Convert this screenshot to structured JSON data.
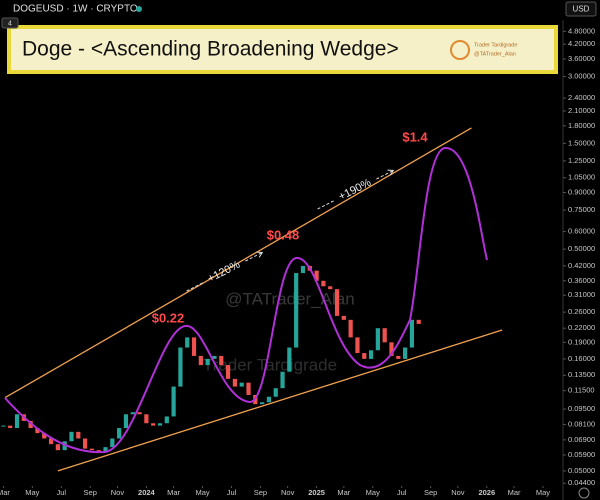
{
  "header": {
    "symbol": "DOGEUSD · 1W · CRYPTO",
    "interval_badge": "4",
    "currency": "USD"
  },
  "banner": {
    "title": "Doge - <Ascending Broadening Wedge>",
    "brand": "Trader Tardigrade",
    "handle": "@TATrader_Alan"
  },
  "watermarks": [
    "@TATrader_Alan",
    "Trader Tardigrade"
  ],
  "annotations": [
    "$0.22",
    "$0.48",
    "$1.4",
    "+120%",
    "+190%"
  ],
  "chart_data": {
    "type": "candlestick",
    "log_scale": true,
    "xlim": [
      2023.14,
      2026.43
    ],
    "ylim": [
      0.041,
      5.4
    ],
    "up_color": "#26a69a",
    "down_color": "#ef5350",
    "x": [
      2023.16,
      2023.2,
      2023.24,
      2023.28,
      2023.32,
      2023.36,
      2023.4,
      2023.44,
      2023.48,
      2023.52,
      2023.56,
      2023.6,
      2023.64,
      2023.68,
      2023.72,
      2023.76,
      2023.8,
      2023.84,
      2023.88,
      2023.92,
      2023.96,
      2024.0,
      2024.04,
      2024.08,
      2024.12,
      2024.16,
      2024.2,
      2024.24,
      2024.28,
      2024.32,
      2024.36,
      2024.4,
      2024.44,
      2024.48,
      2024.52,
      2024.56,
      2024.6,
      2024.64,
      2024.68,
      2024.72,
      2024.76,
      2024.8,
      2024.84,
      2024.88,
      2024.92,
      2024.96,
      2025.0,
      2025.04,
      2025.08,
      2025.12,
      2025.16,
      2025.2,
      2025.24,
      2025.28,
      2025.32,
      2025.36,
      2025.4,
      2025.44,
      2025.48,
      2025.52,
      2025.56,
      2025.6
    ],
    "values": [
      0.08,
      0.078,
      0.09,
      0.084,
      0.078,
      0.074,
      0.07,
      0.066,
      0.062,
      0.068,
      0.075,
      0.07,
      0.063,
      0.062,
      0.061,
      0.064,
      0.07,
      0.078,
      0.09,
      0.092,
      0.09,
      0.082,
      0.08,
      0.082,
      0.088,
      0.12,
      0.18,
      0.2,
      0.165,
      0.15,
      0.16,
      0.165,
      0.15,
      0.13,
      0.12,
      0.125,
      0.11,
      0.1,
      0.102,
      0.108,
      0.118,
      0.14,
      0.18,
      0.39,
      0.42,
      0.4,
      0.36,
      0.34,
      0.33,
      0.25,
      0.24,
      0.2,
      0.17,
      0.16,
      0.175,
      0.22,
      0.19,
      0.165,
      0.16,
      0.18,
      0.24,
      0.23
    ],
    "trendlines": [
      {
        "color": "#f0a050",
        "x": [
          2023.17,
          2025.91
        ],
        "values": [
          0.107,
          1.76
        ]
      },
      {
        "color": "#f0a050",
        "x": [
          2023.48,
          2026.09
        ],
        "values": [
          0.05,
          0.216
        ]
      }
    ],
    "yticks": [
      {
        "value": 4.8,
        "label": "4.80000"
      },
      {
        "value": 4.2,
        "label": "4.20000"
      },
      {
        "value": 3.6,
        "label": "3.60000"
      },
      {
        "value": 3.0,
        "label": "3.00000"
      },
      {
        "value": 2.4,
        "label": "2.40000"
      },
      {
        "value": 2.1,
        "label": "2.10000"
      },
      {
        "value": 1.8,
        "label": "1.80000"
      },
      {
        "value": 1.5,
        "label": "1.50000"
      },
      {
        "value": 1.25,
        "label": "1.25000"
      },
      {
        "value": 1.05,
        "label": "1.05000"
      },
      {
        "value": 0.9,
        "label": "0.90000"
      },
      {
        "value": 0.75,
        "label": "0.75000"
      },
      {
        "value": 0.6,
        "label": "0.60000"
      },
      {
        "value": 0.5,
        "label": "0.50000"
      },
      {
        "value": 0.42,
        "label": "0.42000"
      },
      {
        "value": 0.36,
        "label": "0.36000"
      },
      {
        "value": 0.31,
        "label": "0.31000"
      },
      {
        "value": 0.26,
        "label": "0.26000"
      },
      {
        "value": 0.22,
        "label": "0.22000"
      },
      {
        "value": 0.19,
        "label": "0.19000"
      },
      {
        "value": 0.16,
        "label": "0.16000"
      },
      {
        "value": 0.135,
        "label": "0.13500"
      },
      {
        "value": 0.115,
        "label": "0.11500"
      },
      {
        "value": 0.095,
        "label": "0.09500"
      },
      {
        "value": 0.081,
        "label": "0.08100"
      },
      {
        "value": 0.069,
        "label": "0.06900"
      },
      {
        "value": 0.059,
        "label": "0.05900"
      },
      {
        "value": 0.05,
        "label": "0.05000"
      },
      {
        "value": 0.044,
        "label": "0.04400"
      }
    ],
    "xticks": [
      {
        "value": 2023.16,
        "label": "Mar"
      },
      {
        "value": 2023.33,
        "label": "May"
      },
      {
        "value": 2023.5,
        "label": "Jul"
      },
      {
        "value": 2023.67,
        "label": "Sep"
      },
      {
        "value": 2023.83,
        "label": "Nov"
      },
      2024,
      {
        "value": 2024.16,
        "label": "Mar"
      },
      {
        "value": 2024.33,
        "label": "May"
      },
      {
        "value": 2024.5,
        "label": "Jul"
      },
      {
        "value": 2024.67,
        "label": "Sep"
      },
      {
        "value": 2024.83,
        "label": "Nov"
      },
      2025,
      {
        "value": 2025.16,
        "label": "Mar"
      },
      {
        "value": 2025.33,
        "label": "May"
      },
      {
        "value": 2025.5,
        "label": "Jul"
      },
      {
        "value": 2025.67,
        "label": "Sep"
      },
      {
        "value": 2025.83,
        "label": "Nov"
      },
      2026,
      {
        "value": 2026.16,
        "label": "Mar"
      },
      {
        "value": 2026.33,
        "label": "May"
      }
    ]
  }
}
